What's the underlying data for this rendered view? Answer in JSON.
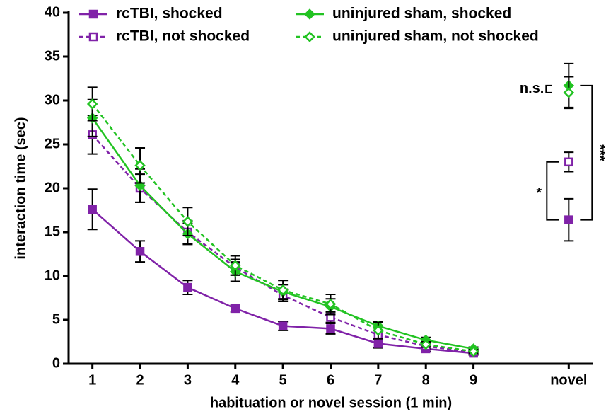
{
  "chart_data": {
    "type": "line",
    "x_label": "habituation or novel session (1 min)",
    "y_label": "interaction time (sec)",
    "categories": [
      "1",
      "2",
      "3",
      "4",
      "5",
      "6",
      "7",
      "8",
      "9",
      null,
      "novel"
    ],
    "ylim": [
      0,
      40
    ],
    "yticks": [
      0,
      5,
      10,
      15,
      20,
      25,
      30,
      35,
      40
    ],
    "legend": "top",
    "series": [
      {
        "name": "rcTBI, shocked",
        "color": "#8022a8",
        "marker": "square",
        "filled": true,
        "dashed": false,
        "values": [
          17.6,
          12.8,
          8.7,
          6.3,
          4.3,
          4.0,
          2.3,
          1.7,
          1.2,
          null,
          16.4
        ],
        "errors": [
          2.3,
          1.2,
          0.8,
          0.4,
          0.5,
          0.6,
          0.5,
          0.3,
          0.2,
          null,
          2.4
        ]
      },
      {
        "name": "rcTBI, not shocked",
        "color": "#8022a8",
        "marker": "square",
        "filled": false,
        "dashed": true,
        "values": [
          26.1,
          20.0,
          15.0,
          11.0,
          7.8,
          5.3,
          3.3,
          2.0,
          1.3,
          null,
          23.0
        ],
        "errors": [
          2.2,
          1.6,
          1.3,
          0.9,
          0.7,
          0.6,
          0.5,
          0.3,
          0.2,
          null,
          1.1
        ]
      },
      {
        "name": "uninjured sham, shocked",
        "color": "#22c322",
        "marker": "diamond",
        "filled": true,
        "dashed": false,
        "values": [
          28.0,
          20.3,
          14.8,
          10.5,
          8.2,
          6.5,
          4.3,
          2.7,
          1.7,
          null,
          31.7
        ],
        "errors": [
          2.1,
          1.9,
          1.2,
          1.1,
          0.8,
          0.9,
          0.5,
          0.3,
          0.2,
          null,
          2.5
        ]
      },
      {
        "name": "uninjured sham, not shocked",
        "color": "#22c322",
        "marker": "diamond",
        "filled": false,
        "dashed": true,
        "values": [
          29.6,
          22.6,
          16.2,
          11.2,
          8.4,
          6.8,
          3.8,
          2.2,
          1.4,
          null,
          30.9
        ],
        "errors": [
          1.9,
          2.0,
          1.6,
          1.1,
          1.1,
          1.1,
          0.9,
          0.3,
          0.2,
          null,
          1.8
        ]
      }
    ],
    "annotations": [
      "n.s.",
      "*",
      "***"
    ]
  }
}
